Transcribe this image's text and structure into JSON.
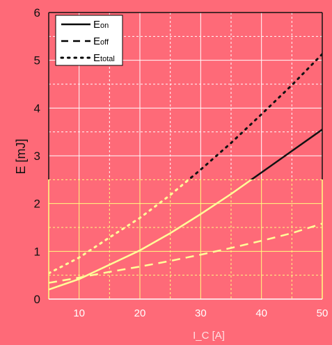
{
  "chart_data": {
    "type": "line",
    "title": "",
    "xlabel": "I_C [A]",
    "ylabel": "E [mJ]",
    "xlim": [
      5,
      50
    ],
    "ylim": [
      0,
      6
    ],
    "x_ticks": [
      "10",
      "20",
      "30",
      "40",
      "50"
    ],
    "y_ticks": [
      "0",
      "1",
      "2",
      "3",
      "4",
      "5",
      "6"
    ],
    "grid": true,
    "legend_position": "top-left",
    "legend": [
      {
        "main": "E",
        "sub": "on"
      },
      {
        "main": "E",
        "sub": "off"
      },
      {
        "main": "E",
        "sub": "total"
      }
    ],
    "series": [
      {
        "name": "Eon",
        "style": "solid",
        "x": [
          5,
          10,
          15,
          20,
          25,
          30,
          35,
          40,
          45,
          50
        ],
        "y": [
          0.2,
          0.42,
          0.72,
          1.02,
          1.38,
          1.78,
          2.2,
          2.65,
          3.1,
          3.55
        ]
      },
      {
        "name": "Eoff",
        "style": "dashed",
        "x": [
          5,
          10,
          15,
          20,
          25,
          30,
          35,
          40,
          45,
          50
        ],
        "y": [
          0.34,
          0.45,
          0.57,
          0.68,
          0.8,
          0.93,
          1.07,
          1.22,
          1.38,
          1.58
        ]
      },
      {
        "name": "Etotal",
        "style": "dotted",
        "x": [
          5,
          10,
          15,
          20,
          25,
          30,
          35,
          40,
          45,
          50
        ],
        "y": [
          0.54,
          0.87,
          1.29,
          1.7,
          2.18,
          2.71,
          3.27,
          3.87,
          4.48,
          5.13
        ]
      }
    ]
  },
  "colors": {
    "background": "#fe6a78",
    "grid_upper": "#ffffff",
    "grid_lower": "#ffff80",
    "curves_upper": "#111111",
    "curves_lower": "#ffff99",
    "legend_bg": "#ffffff"
  }
}
